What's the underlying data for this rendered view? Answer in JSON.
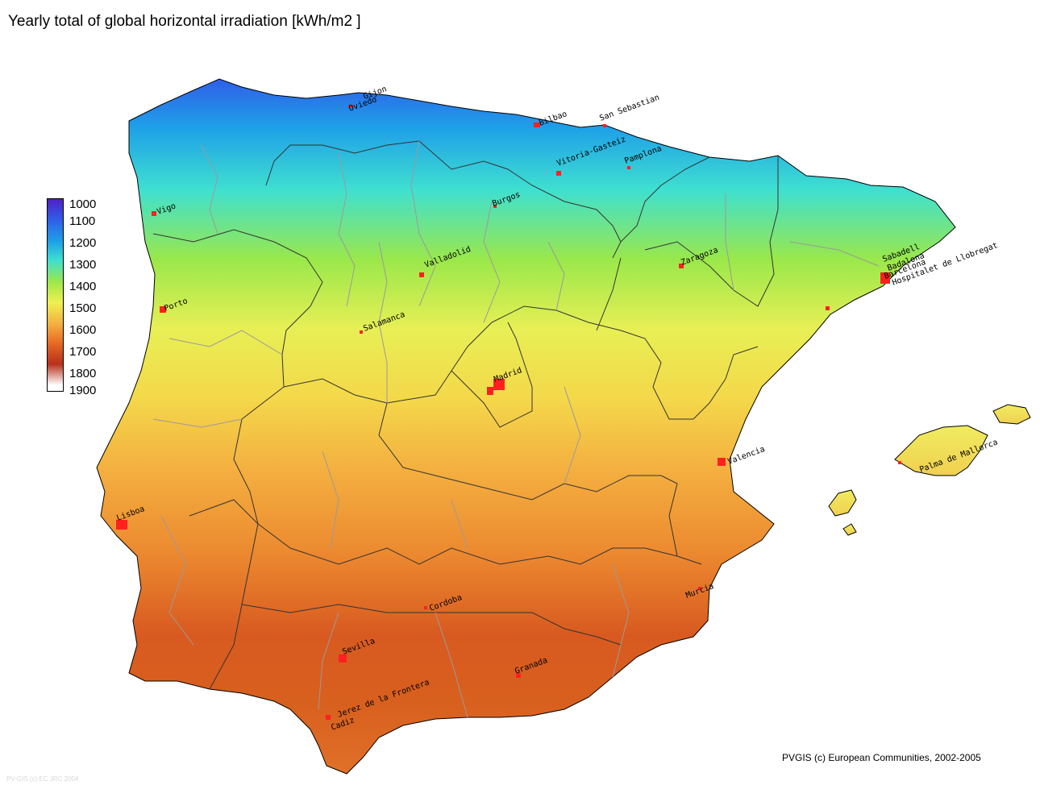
{
  "title": "Yearly total of global horizontal irradiation [kWh/m2 ]",
  "legend": {
    "labels": [
      "1000",
      "1100",
      "1200",
      "1300",
      "1400",
      "1500",
      "1600",
      "1700",
      "1800",
      "1900"
    ],
    "colors": [
      "#5020c8",
      "#2f5fe8",
      "#1ea0e8",
      "#3fe0d0",
      "#9ae84a",
      "#f0f050",
      "#f4b040",
      "#e86a24",
      "#b8301a",
      "#ffffff"
    ]
  },
  "cities": [
    {
      "name": "Gijon"
    },
    {
      "name": "Oviedo"
    },
    {
      "name": "Bilbao"
    },
    {
      "name": "San Sebastian"
    },
    {
      "name": "Vitoria-Gasteiz"
    },
    {
      "name": "Pamplona"
    },
    {
      "name": "Vigo"
    },
    {
      "name": "Burgos"
    },
    {
      "name": "Valladolid"
    },
    {
      "name": "Zaragoza"
    },
    {
      "name": "Sabadell"
    },
    {
      "name": "Badalona"
    },
    {
      "name": "Barcelona"
    },
    {
      "name": "Hospitalet de Llobregat"
    },
    {
      "name": "Porto"
    },
    {
      "name": "Salamanca"
    },
    {
      "name": "Madrid"
    },
    {
      "name": "Valencia"
    },
    {
      "name": "Palma de Mallorca"
    },
    {
      "name": "Lisboa"
    },
    {
      "name": "Murcia"
    },
    {
      "name": "Cordoba"
    },
    {
      "name": "Sevilla"
    },
    {
      "name": "Granada"
    },
    {
      "name": "Jerez de la Frontera"
    },
    {
      "name": "Cadiz"
    }
  ],
  "copyright": "PVGIS (c) European Communities, 2002-2005",
  "watermark": "PV-GIS (c) EC JRC 2004"
}
